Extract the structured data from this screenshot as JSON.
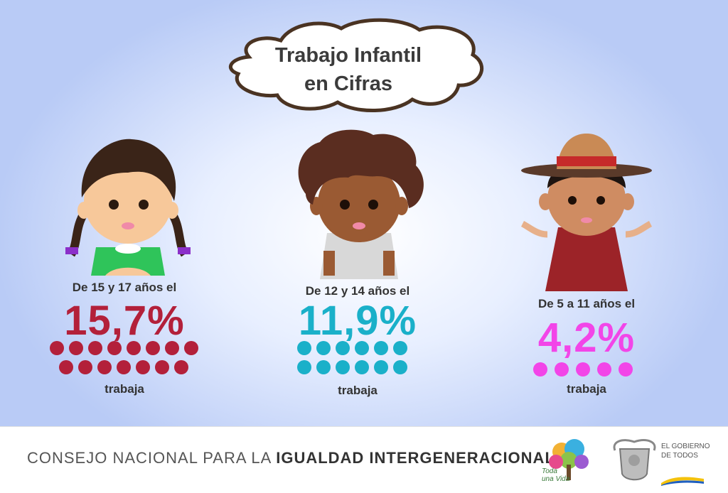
{
  "title": "Trabajo Infantil en Cifras",
  "title_lines": [
    "Trabajo Infantil",
    "en Cifras"
  ],
  "stats": [
    {
      "label": "De 15 y 17 años el",
      "percent": "15,7%",
      "value": 15.7,
      "suffix": "trabaja",
      "color": "#b3203a",
      "dots": 15
    },
    {
      "label": "De 12 y 14 años el",
      "percent": "11,9%",
      "value": 11.9,
      "suffix": "trabaja",
      "color": "#1ab0c9",
      "dots": 12
    },
    {
      "label": "De 5 a 11 años el",
      "percent": "4,2%",
      "value": 4.2,
      "suffix": "trabaja",
      "color": "#f245e8",
      "dots": 5
    }
  ],
  "footer": {
    "org_prefix": "CONSEJO NACIONAL PARA LA ",
    "org_bold": "IGUALDAD INTERGENERACIONAL",
    "logo1_text": "Toda una Vida",
    "gov_text": "EL GOBIERNO DE TODOS"
  },
  "colors": {
    "red": "#b3203a",
    "teal": "#1ab0c9",
    "pink": "#f245e8"
  }
}
